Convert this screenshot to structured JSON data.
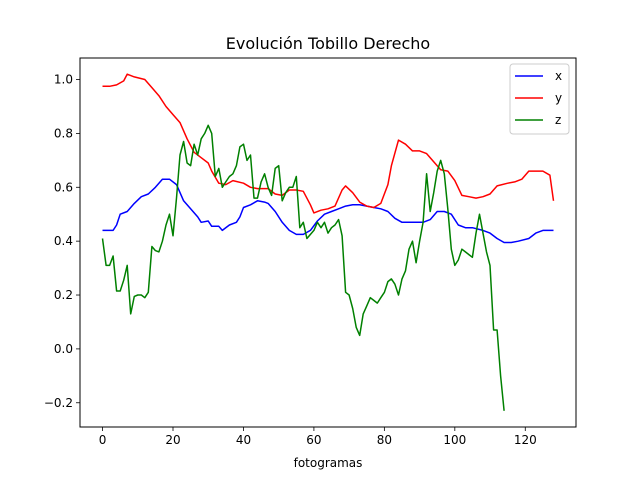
{
  "chart_data": {
    "type": "line",
    "title": "Evolución Tobillo Derecho",
    "xlabel": "fotogramas",
    "ylabel": "",
    "xlim": [
      -6.4,
      134.4
    ],
    "ylim": [
      -0.29,
      1.08
    ],
    "x_ticks": [
      0,
      20,
      40,
      60,
      80,
      100,
      120
    ],
    "x_tick_labels": [
      "0",
      "20",
      "40",
      "60",
      "80",
      "100",
      "120"
    ],
    "y_ticks": [
      -0.2,
      0.0,
      0.2,
      0.4,
      0.6,
      0.8,
      1.0
    ],
    "y_tick_labels": [
      "−0.2",
      "0.0",
      "0.2",
      "0.4",
      "0.6",
      "0.8",
      "1.0"
    ],
    "grid": false,
    "legend_position": "top-right",
    "series": [
      {
        "name": "x",
        "color": "#0000ff",
        "points": [
          [
            0,
            0.44
          ],
          [
            3,
            0.44
          ],
          [
            4,
            0.46
          ],
          [
            5,
            0.5
          ],
          [
            7,
            0.51
          ],
          [
            9,
            0.54
          ],
          [
            11,
            0.565
          ],
          [
            13,
            0.575
          ],
          [
            15,
            0.6
          ],
          [
            17,
            0.63
          ],
          [
            19,
            0.63
          ],
          [
            21,
            0.61
          ],
          [
            23,
            0.55
          ],
          [
            25,
            0.52
          ],
          [
            27,
            0.49
          ],
          [
            28,
            0.47
          ],
          [
            30,
            0.475
          ],
          [
            31,
            0.455
          ],
          [
            33,
            0.455
          ],
          [
            34,
            0.44
          ],
          [
            36,
            0.46
          ],
          [
            38,
            0.47
          ],
          [
            39,
            0.49
          ],
          [
            40,
            0.525
          ],
          [
            42,
            0.535
          ],
          [
            44,
            0.55
          ],
          [
            46,
            0.545
          ],
          [
            47,
            0.54
          ],
          [
            49,
            0.51
          ],
          [
            51,
            0.47
          ],
          [
            53,
            0.44
          ],
          [
            55,
            0.425
          ],
          [
            57,
            0.425
          ],
          [
            59,
            0.44
          ],
          [
            61,
            0.475
          ],
          [
            63,
            0.5
          ],
          [
            65,
            0.51
          ],
          [
            67,
            0.52
          ],
          [
            69,
            0.53
          ],
          [
            71,
            0.535
          ],
          [
            73,
            0.535
          ],
          [
            75,
            0.53
          ],
          [
            77,
            0.525
          ],
          [
            79,
            0.52
          ],
          [
            81,
            0.51
          ],
          [
            83,
            0.485
          ],
          [
            85,
            0.47
          ],
          [
            87,
            0.47
          ],
          [
            89,
            0.47
          ],
          [
            91,
            0.47
          ],
          [
            93,
            0.48
          ],
          [
            95,
            0.51
          ],
          [
            97,
            0.51
          ],
          [
            99,
            0.5
          ],
          [
            101,
            0.46
          ],
          [
            103,
            0.45
          ],
          [
            105,
            0.45
          ],
          [
            108,
            0.44
          ],
          [
            110,
            0.43
          ],
          [
            112,
            0.41
          ],
          [
            114,
            0.395
          ],
          [
            116,
            0.395
          ],
          [
            118,
            0.4
          ],
          [
            121,
            0.41
          ],
          [
            123,
            0.43
          ],
          [
            125,
            0.44
          ],
          [
            128,
            0.44
          ]
        ]
      },
      {
        "name": "y",
        "color": "#ff0000",
        "points": [
          [
            0,
            0.975
          ],
          [
            2,
            0.975
          ],
          [
            4,
            0.98
          ],
          [
            6,
            0.995
          ],
          [
            7,
            1.02
          ],
          [
            9,
            1.01
          ],
          [
            12,
            1.0
          ],
          [
            14,
            0.97
          ],
          [
            16,
            0.94
          ],
          [
            18,
            0.9
          ],
          [
            20,
            0.87
          ],
          [
            22,
            0.84
          ],
          [
            24,
            0.78
          ],
          [
            26,
            0.73
          ],
          [
            28,
            0.71
          ],
          [
            30,
            0.69
          ],
          [
            31,
            0.66
          ],
          [
            33,
            0.615
          ],
          [
            35,
            0.61
          ],
          [
            37,
            0.625
          ],
          [
            40,
            0.615
          ],
          [
            42,
            0.6
          ],
          [
            44,
            0.595
          ],
          [
            47,
            0.595
          ],
          [
            49,
            0.575
          ],
          [
            51,
            0.57
          ],
          [
            53,
            0.59
          ],
          [
            55,
            0.59
          ],
          [
            57,
            0.585
          ],
          [
            59,
            0.535
          ],
          [
            60,
            0.505
          ],
          [
            62,
            0.515
          ],
          [
            64,
            0.52
          ],
          [
            66,
            0.53
          ],
          [
            68,
            0.59
          ],
          [
            69,
            0.605
          ],
          [
            71,
            0.58
          ],
          [
            73,
            0.545
          ],
          [
            75,
            0.53
          ],
          [
            77,
            0.525
          ],
          [
            79,
            0.54
          ],
          [
            81,
            0.61
          ],
          [
            82,
            0.68
          ],
          [
            84,
            0.775
          ],
          [
            86,
            0.76
          ],
          [
            88,
            0.735
          ],
          [
            90,
            0.735
          ],
          [
            92,
            0.725
          ],
          [
            94,
            0.695
          ],
          [
            96,
            0.665
          ],
          [
            98,
            0.66
          ],
          [
            100,
            0.625
          ],
          [
            102,
            0.57
          ],
          [
            104,
            0.565
          ],
          [
            106,
            0.56
          ],
          [
            108,
            0.565
          ],
          [
            110,
            0.575
          ],
          [
            112,
            0.605
          ],
          [
            115,
            0.615
          ],
          [
            117,
            0.62
          ],
          [
            119,
            0.63
          ],
          [
            121,
            0.66
          ],
          [
            123,
            0.66
          ],
          [
            125,
            0.66
          ],
          [
            127,
            0.645
          ],
          [
            128,
            0.55
          ]
        ]
      },
      {
        "name": "z",
        "color": "#008000",
        "points": [
          [
            0,
            0.41
          ],
          [
            1,
            0.31
          ],
          [
            2,
            0.31
          ],
          [
            3,
            0.345
          ],
          [
            4,
            0.215
          ],
          [
            5,
            0.215
          ],
          [
            6,
            0.255
          ],
          [
            7,
            0.31
          ],
          [
            8,
            0.13
          ],
          [
            9,
            0.195
          ],
          [
            10,
            0.2
          ],
          [
            11,
            0.2
          ],
          [
            12,
            0.19
          ],
          [
            13,
            0.21
          ],
          [
            14,
            0.38
          ],
          [
            15,
            0.365
          ],
          [
            16,
            0.36
          ],
          [
            17,
            0.4
          ],
          [
            18,
            0.46
          ],
          [
            19,
            0.5
          ],
          [
            20,
            0.42
          ],
          [
            21,
            0.56
          ],
          [
            22,
            0.72
          ],
          [
            23,
            0.77
          ],
          [
            24,
            0.69
          ],
          [
            25,
            0.68
          ],
          [
            26,
            0.76
          ],
          [
            27,
            0.72
          ],
          [
            28,
            0.78
          ],
          [
            29,
            0.8
          ],
          [
            30,
            0.83
          ],
          [
            31,
            0.8
          ],
          [
            32,
            0.64
          ],
          [
            33,
            0.67
          ],
          [
            34,
            0.6
          ],
          [
            35,
            0.62
          ],
          [
            36,
            0.64
          ],
          [
            37,
            0.65
          ],
          [
            38,
            0.68
          ],
          [
            39,
            0.75
          ],
          [
            40,
            0.76
          ],
          [
            41,
            0.7
          ],
          [
            42,
            0.72
          ],
          [
            43,
            0.56
          ],
          [
            44,
            0.56
          ],
          [
            45,
            0.62
          ],
          [
            46,
            0.65
          ],
          [
            47,
            0.6
          ],
          [
            48,
            0.57
          ],
          [
            49,
            0.67
          ],
          [
            50,
            0.68
          ],
          [
            51,
            0.55
          ],
          [
            52,
            0.58
          ],
          [
            53,
            0.6
          ],
          [
            54,
            0.6
          ],
          [
            55,
            0.64
          ],
          [
            56,
            0.45
          ],
          [
            57,
            0.47
          ],
          [
            58,
            0.41
          ],
          [
            60,
            0.44
          ],
          [
            61,
            0.47
          ],
          [
            62,
            0.45
          ],
          [
            63,
            0.47
          ],
          [
            64,
            0.43
          ],
          [
            65,
            0.45
          ],
          [
            66,
            0.46
          ],
          [
            67,
            0.48
          ],
          [
            68,
            0.42
          ],
          [
            69,
            0.21
          ],
          [
            70,
            0.2
          ],
          [
            71,
            0.15
          ],
          [
            72,
            0.08
          ],
          [
            73,
            0.05
          ],
          [
            74,
            0.13
          ],
          [
            75,
            0.16
          ],
          [
            76,
            0.19
          ],
          [
            77,
            0.18
          ],
          [
            78,
            0.17
          ],
          [
            79,
            0.19
          ],
          [
            80,
            0.21
          ],
          [
            81,
            0.25
          ],
          [
            82,
            0.26
          ],
          [
            83,
            0.24
          ],
          [
            84,
            0.2
          ],
          [
            85,
            0.26
          ],
          [
            86,
            0.29
          ],
          [
            87,
            0.37
          ],
          [
            88,
            0.4
          ],
          [
            89,
            0.32
          ],
          [
            90,
            0.4
          ],
          [
            91,
            0.47
          ],
          [
            92,
            0.65
          ],
          [
            93,
            0.51
          ],
          [
            94,
            0.58
          ],
          [
            95,
            0.66
          ],
          [
            96,
            0.7
          ],
          [
            97,
            0.65
          ],
          [
            98,
            0.52
          ],
          [
            99,
            0.37
          ],
          [
            100,
            0.31
          ],
          [
            101,
            0.33
          ],
          [
            102,
            0.37
          ],
          [
            103,
            0.36
          ],
          [
            104,
            0.35
          ],
          [
            105,
            0.34
          ],
          [
            106,
            0.43
          ],
          [
            107,
            0.5
          ],
          [
            108,
            0.43
          ],
          [
            109,
            0.36
          ],
          [
            110,
            0.31
          ],
          [
            111,
            0.07
          ],
          [
            112,
            0.07
          ],
          [
            113,
            -0.1
          ],
          [
            114,
            -0.23
          ]
        ]
      }
    ]
  }
}
